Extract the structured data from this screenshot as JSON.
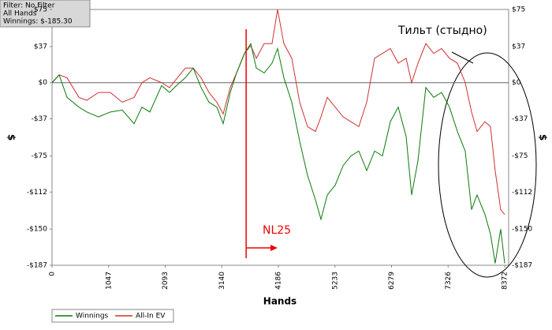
{
  "chart_data": {
    "type": "line",
    "info": [
      "Filter: No Filter",
      "All Hands",
      "Winnings: $-185.30"
    ],
    "xlabel": "Hands",
    "ylabel": "$",
    "annotations": [
      {
        "text": "Тильт (стыдно)"
      },
      {
        "text": "NL25",
        "x": 3590
      }
    ],
    "xlim": [
      0,
      8372
    ],
    "xticks": [
      0,
      1047,
      2093,
      3140,
      4186,
      5233,
      6279,
      7326,
      8372
    ],
    "ylim": [
      -187,
      75
    ],
    "yticks": [
      {
        "value": 75,
        "label": "$75"
      },
      {
        "value": 37,
        "label": "$37"
      },
      {
        "value": 0,
        "label": "$0"
      },
      {
        "value": -37,
        "label": "-$37"
      },
      {
        "value": -75,
        "label": "-$75"
      },
      {
        "value": -112,
        "label": "-$112"
      },
      {
        "value": -150,
        "label": "-$150"
      },
      {
        "value": -187,
        "label": "-$187"
      }
    ],
    "grid": false,
    "x": [
      0,
      131,
      277,
      496,
      642,
      860,
      1079,
      1298,
      1517,
      1663,
      1809,
      2027,
      2173,
      2319,
      2465,
      2611,
      2757,
      2902,
      3048,
      3165,
      3296,
      3413,
      3559,
      3675,
      3778,
      3923,
      4069,
      4171,
      4288,
      4434,
      4580,
      4726,
      4872,
      4974,
      5091,
      5237,
      5383,
      5528,
      5674,
      5820,
      5966,
      6111,
      6257,
      6403,
      6549,
      6651,
      6768,
      6913,
      7059,
      7205,
      7351,
      7497,
      7642,
      7759,
      7861,
      8007,
      8109,
      8196,
      8298,
      8372
    ],
    "series": [
      {
        "name": "Winnings",
        "color": "#0a7a0a",
        "values": [
          0,
          8,
          -15,
          -25,
          -30,
          -35,
          -30,
          -28,
          -42,
          -25,
          -30,
          -3,
          -10,
          -2,
          5,
          15,
          -5,
          -20,
          -25,
          -42,
          -10,
          10,
          30,
          40,
          15,
          10,
          20,
          35,
          5,
          -20,
          -60,
          -95,
          -120,
          -140,
          -115,
          -105,
          -85,
          -75,
          -70,
          -90,
          -70,
          -75,
          -40,
          -25,
          -55,
          -115,
          -80,
          -5,
          -15,
          -10,
          -25,
          -50,
          -70,
          -130,
          -115,
          -135,
          -155,
          -185,
          -150,
          -185
        ]
      },
      {
        "name": "All-In EV",
        "color": "#d03030",
        "values": [
          0,
          8,
          5,
          -15,
          -18,
          -10,
          -10,
          -20,
          -15,
          0,
          5,
          0,
          -5,
          5,
          15,
          15,
          5,
          -10,
          -20,
          -32,
          -5,
          10,
          30,
          38,
          25,
          40,
          40,
          75,
          40,
          25,
          -20,
          -45,
          -50,
          -35,
          -15,
          -25,
          -35,
          -40,
          -45,
          -20,
          25,
          30,
          35,
          20,
          25,
          0,
          20,
          40,
          30,
          35,
          25,
          20,
          0,
          -30,
          -50,
          -40,
          -45,
          -90,
          -130,
          -135
        ]
      }
    ]
  }
}
